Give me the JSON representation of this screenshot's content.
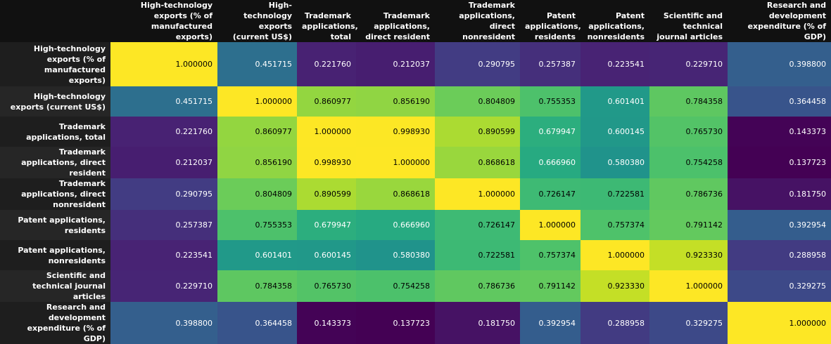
{
  "chart_data": {
    "type": "heatmap",
    "colormap": "viridis",
    "vmin": 0.137723,
    "vmax": 1.0,
    "columns": [
      "High-technology exports (% of manufactured exports)",
      "High-technology exports (current US$)",
      "Trademark applications, total",
      "Trademark applications, direct resident",
      "Trademark applications, direct nonresident",
      "Patent applications, residents",
      "Patent applications, nonresidents",
      "Scientific and technical journal articles",
      "Research and development expenditure (% of GDP)"
    ],
    "rows": [
      {
        "label": "High-technology exports (% of manufactured exports)",
        "values": [
          1.0,
          0.451715,
          0.22176,
          0.212037,
          0.290795,
          0.257387,
          0.223541,
          0.22971,
          0.3988
        ]
      },
      {
        "label": "High-technology exports (current US$)",
        "values": [
          0.451715,
          1.0,
          0.860977,
          0.85619,
          0.804809,
          0.755353,
          0.601401,
          0.784358,
          0.364458
        ]
      },
      {
        "label": "Trademark applications, total",
        "values": [
          0.22176,
          0.860977,
          1.0,
          0.99893,
          0.890599,
          0.679947,
          0.600145,
          0.76573,
          0.143373
        ]
      },
      {
        "label": "Trademark applications, direct resident",
        "values": [
          0.212037,
          0.85619,
          0.99893,
          1.0,
          0.868618,
          0.66696,
          0.58038,
          0.754258,
          0.137723
        ]
      },
      {
        "label": "Trademark applications, direct nonresident",
        "values": [
          0.290795,
          0.804809,
          0.890599,
          0.868618,
          1.0,
          0.726147,
          0.722581,
          0.786736,
          0.18175
        ]
      },
      {
        "label": "Patent applications, residents",
        "values": [
          0.257387,
          0.755353,
          0.679947,
          0.66696,
          0.726147,
          1.0,
          0.757374,
          0.791142,
          0.392954
        ]
      },
      {
        "label": "Patent applications, nonresidents",
        "values": [
          0.223541,
          0.601401,
          0.600145,
          0.58038,
          0.722581,
          0.757374,
          1.0,
          0.92333,
          0.288958
        ]
      },
      {
        "label": "Scientific and technical journal articles",
        "values": [
          0.22971,
          0.784358,
          0.76573,
          0.754258,
          0.786736,
          0.791142,
          0.92333,
          1.0,
          0.329275
        ]
      },
      {
        "label": "Research and development expenditure (% of GDP)",
        "values": [
          0.3988,
          0.364458,
          0.143373,
          0.137723,
          0.18175,
          0.392954,
          0.288958,
          0.329275,
          1.0
        ]
      }
    ]
  }
}
